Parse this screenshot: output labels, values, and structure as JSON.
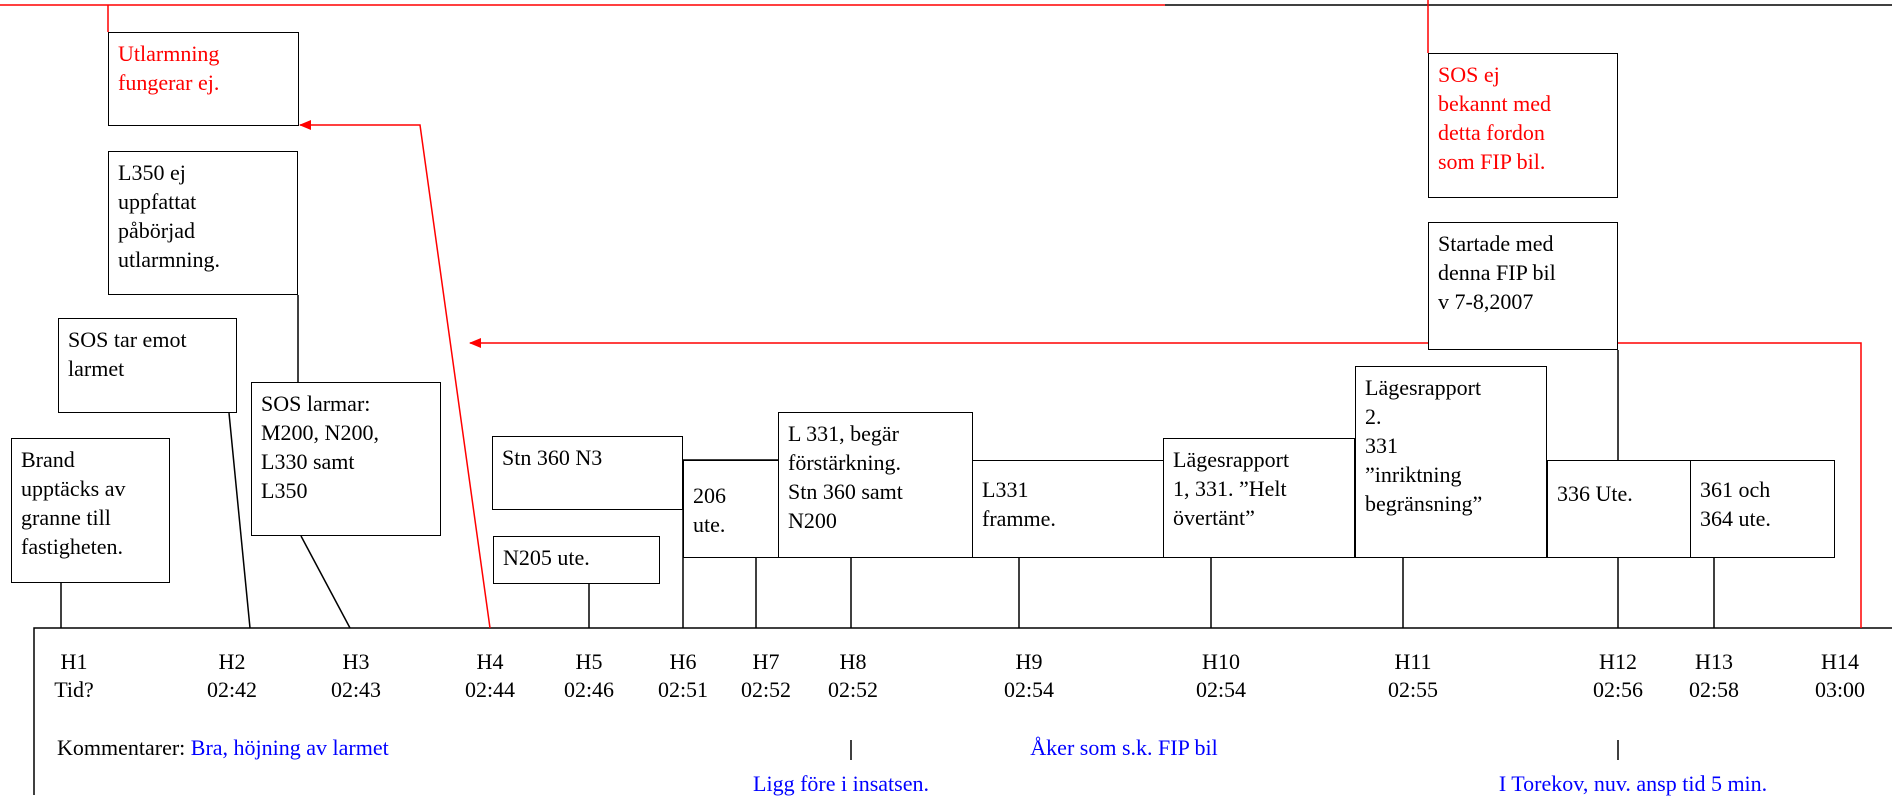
{
  "boxes": {
    "brand": "Brand\nupptäcks av\ngranne till\nfastigheten.",
    "sos_emot": "SOS tar emot\nlarmet",
    "sos_larmar": "SOS larmar:\nM200, N200,\nL330 samt\nL350",
    "l350": "L350 ej\nuppfattat\npåbörjad\nutlarmning.",
    "utlarmning": "Utlarmning\nfungerar ej.",
    "stn360n3": "Stn 360 N3",
    "n205": "N205 ute.",
    "u206": "206\nute.",
    "l331_begar": "L 331, begär\nförstärkning.\nStn 360 samt\nN200",
    "l331_framme": "L331\nframme.",
    "lages1": "Lägesrapport\n1, 331. ”Helt\növertänt”",
    "lages2": "Lägesrapport\n2.\n331\n”inriktning\nbegränsning”",
    "u336": "336 Ute.",
    "u361": "361 och\n364 ute.",
    "startade": "Startade med\ndenna FIP bil\nv 7-8,2007",
    "sos_ej": "SOS ej\nbekannt med\ndetta fordon\nsom FIP bil."
  },
  "timeline": [
    {
      "id": "H1",
      "time": "Tid?"
    },
    {
      "id": "H2",
      "time": "02:42"
    },
    {
      "id": "H3",
      "time": "02:43"
    },
    {
      "id": "H4",
      "time": "02:44"
    },
    {
      "id": "H5",
      "time": "02:46"
    },
    {
      "id": "H6",
      "time": "02:51"
    },
    {
      "id": "H7",
      "time": "02:52"
    },
    {
      "id": "H8",
      "time": "02:52"
    },
    {
      "id": "H9",
      "time": "02:54"
    },
    {
      "id": "H10",
      "time": "02:54"
    },
    {
      "id": "H11",
      "time": "02:55"
    },
    {
      "id": "H12",
      "time": "02:56"
    },
    {
      "id": "H13",
      "time": "02:58"
    },
    {
      "id": "H14",
      "time": "03:00"
    }
  ],
  "comments": {
    "label": "Kommentarer: ",
    "bra": "Bra, höjning av larmet",
    "aker": "Åker som s.k. FIP bil",
    "ligg": "Ligg före i insatsen.",
    "torekov": "I Torekov, nuv. ansp tid 5 min."
  },
  "colors": {
    "annotation": "#ff0000",
    "comment": "#0000ff",
    "line": "#000000"
  }
}
